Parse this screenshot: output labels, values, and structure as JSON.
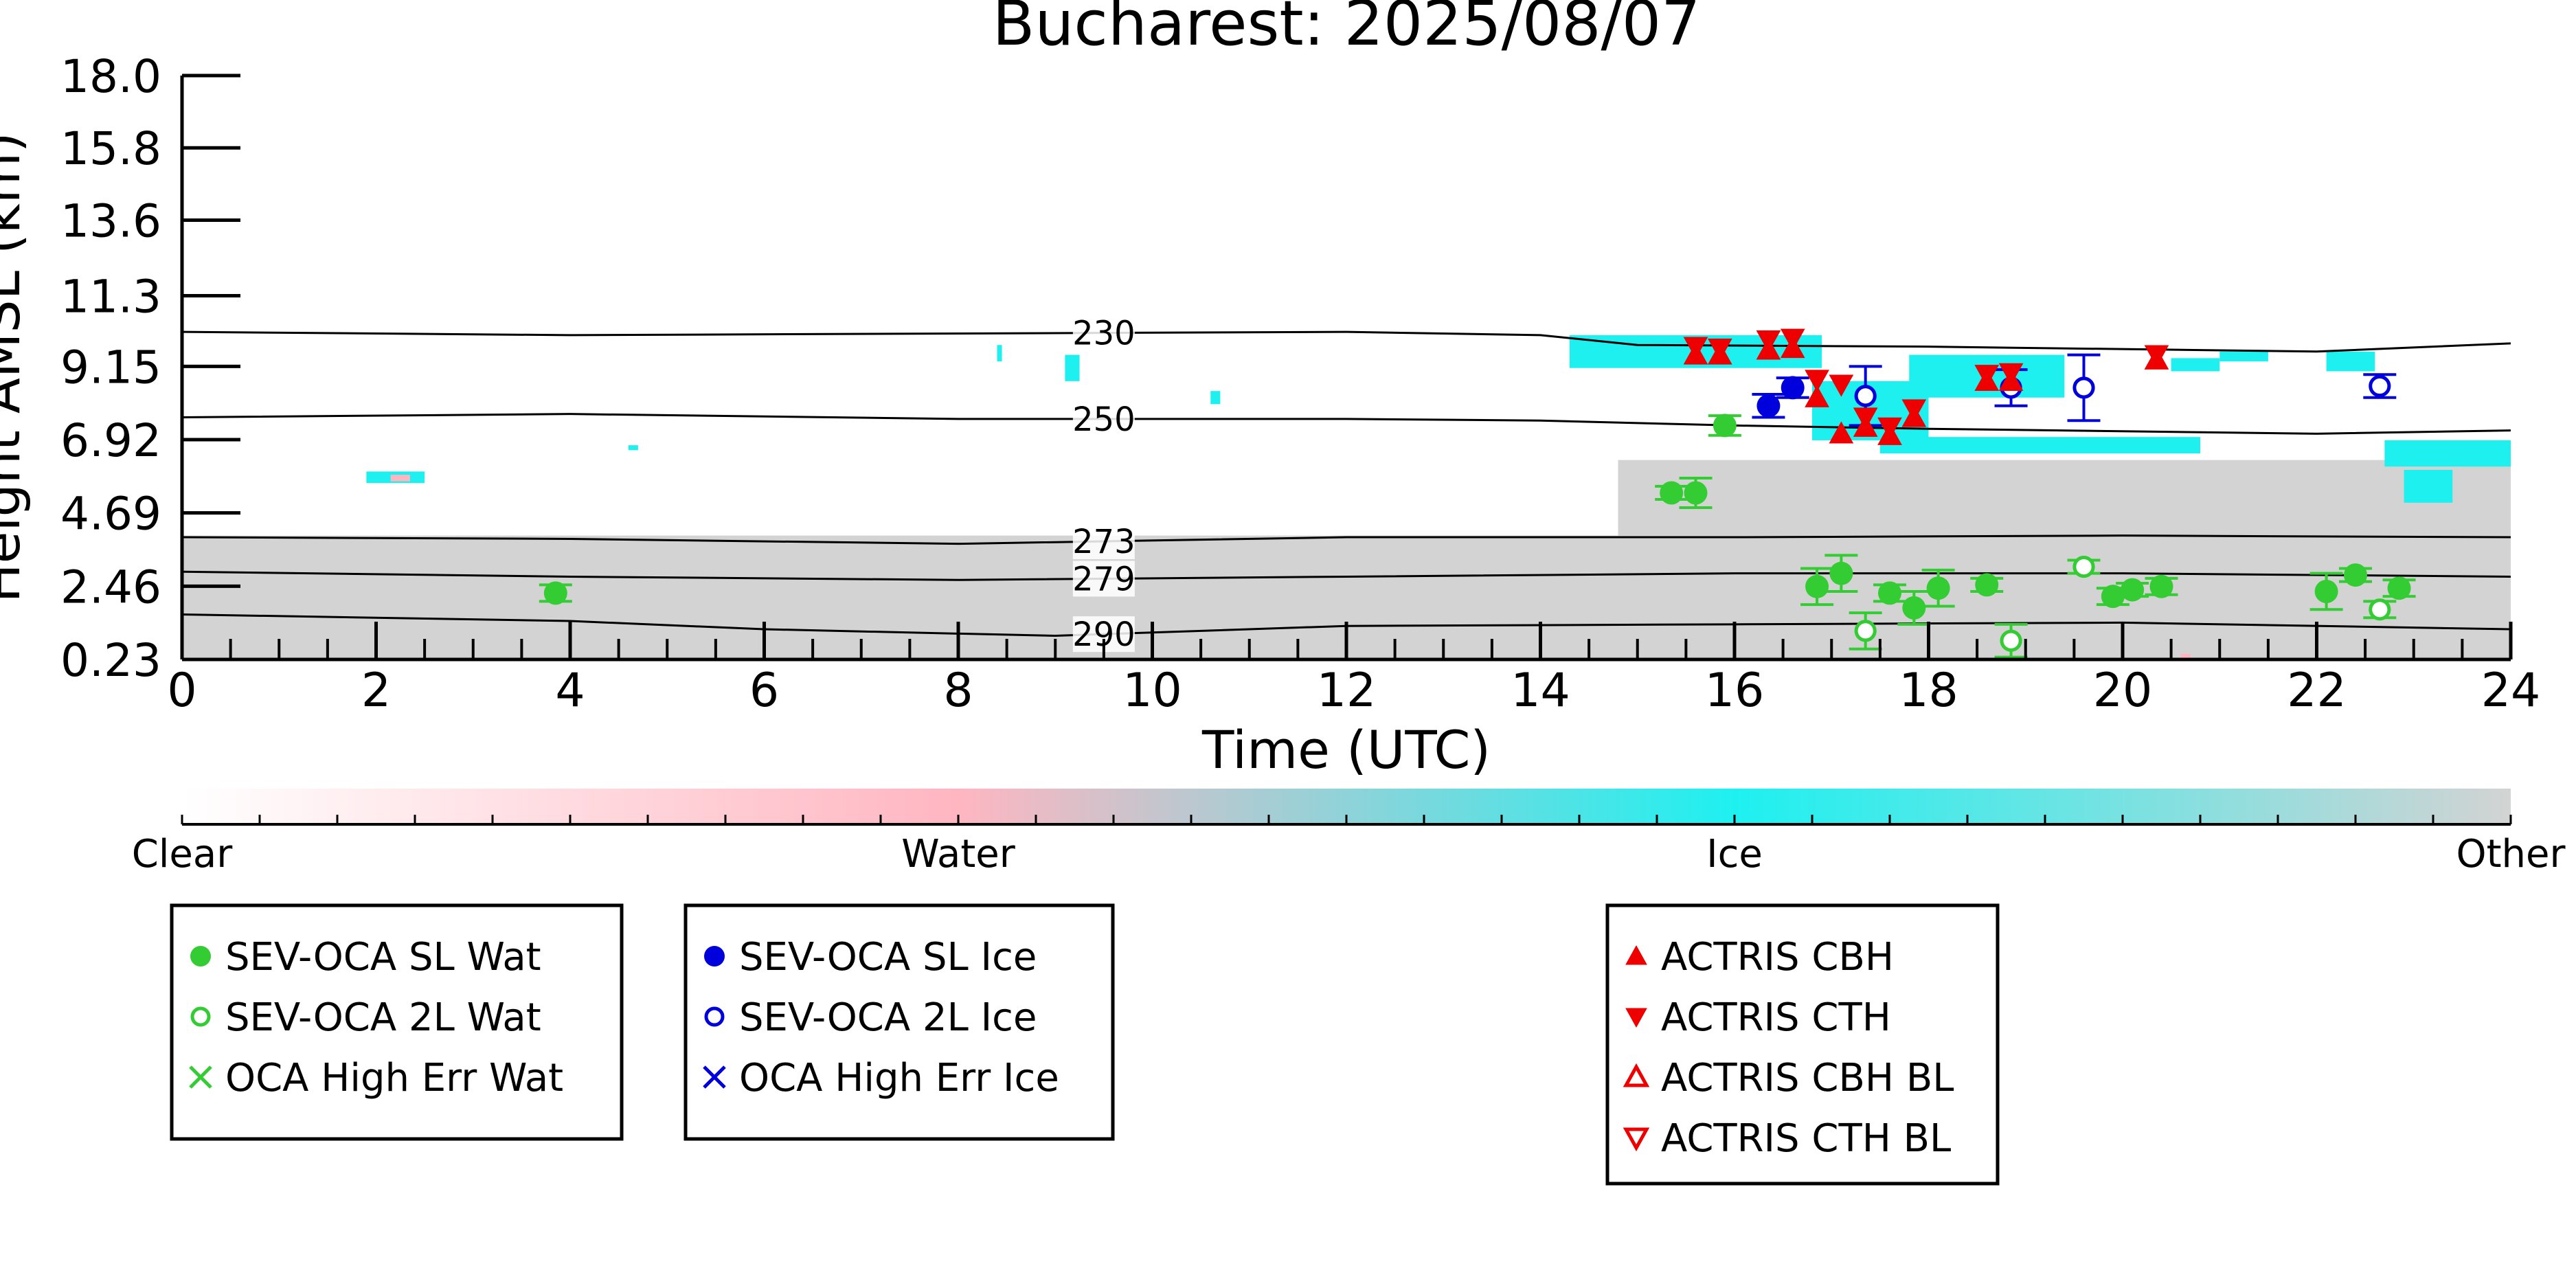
{
  "chart_data": {
    "type": "scatter",
    "title": "Bucharest: 2025/08/07",
    "xlabel": "Time (UTC)",
    "ylabel": "Height AMSL (km)",
    "xlim": [
      0,
      24
    ],
    "ylim": [
      0.23,
      18.0
    ],
    "x_ticks": [
      0,
      2,
      4,
      6,
      8,
      10,
      12,
      14,
      16,
      18,
      20,
      22,
      24
    ],
    "x_tick_labels": [
      "0",
      "2",
      "4",
      "6",
      "8",
      "10",
      "12",
      "14",
      "16",
      "18",
      "20",
      "22",
      "24"
    ],
    "y_ticks": [
      0.23,
      2.46,
      4.69,
      6.92,
      9.15,
      11.3,
      13.6,
      15.8,
      18.0
    ],
    "y_tick_labels": [
      "0.23",
      "2.46",
      "4.69",
      "6.92",
      "9.15",
      "11.3",
      "13.6",
      "15.8",
      "18.0"
    ],
    "grid": false,
    "colors": {
      "water_marker": "#33cc33",
      "ice_marker": "#0000dd",
      "actris_marker": "#ee0000",
      "ice_cloud": "#1ef0f0",
      "water_cloud": "#ffb6c1",
      "other_cloud": "#d3d3d3"
    },
    "isotherms": [
      {
        "label": "230",
        "points": [
          [
            0,
            10.2
          ],
          [
            4,
            10.1
          ],
          [
            8,
            10.15
          ],
          [
            12,
            10.2
          ],
          [
            14,
            10.1
          ],
          [
            15,
            9.8
          ],
          [
            18,
            9.75
          ],
          [
            22,
            9.6
          ],
          [
            24,
            9.85
          ]
        ]
      },
      {
        "label": "250",
        "points": [
          [
            0,
            7.6
          ],
          [
            4,
            7.7
          ],
          [
            8,
            7.55
          ],
          [
            12,
            7.55
          ],
          [
            14,
            7.5
          ],
          [
            16,
            7.35
          ],
          [
            18,
            7.25
          ],
          [
            22,
            7.1
          ],
          [
            24,
            7.2
          ]
        ]
      },
      {
        "label": "273",
        "points": [
          [
            0,
            3.95
          ],
          [
            4,
            3.9
          ],
          [
            8,
            3.75
          ],
          [
            12,
            3.95
          ],
          [
            16,
            3.95
          ],
          [
            20,
            4.0
          ],
          [
            24,
            3.95
          ]
        ]
      },
      {
        "label": "279",
        "points": [
          [
            0,
            2.9
          ],
          [
            4,
            2.75
          ],
          [
            8,
            2.65
          ],
          [
            12,
            2.75
          ],
          [
            16,
            2.85
          ],
          [
            20,
            2.85
          ],
          [
            24,
            2.75
          ]
        ]
      },
      {
        "label": "290",
        "points": [
          [
            0,
            1.6
          ],
          [
            4,
            1.4
          ],
          [
            6,
            1.15
          ],
          [
            9,
            0.95
          ],
          [
            12,
            1.25
          ],
          [
            16,
            1.3
          ],
          [
            20,
            1.35
          ],
          [
            24,
            1.15
          ]
        ]
      }
    ],
    "target_classification": {
      "colorbar": {
        "labels": [
          "Clear",
          "Water",
          "Ice",
          "Other"
        ],
        "colors": [
          "#ffffff",
          "#ffb6c1",
          "#1ef0f0",
          "#d3d3d3"
        ]
      },
      "other_regions": [
        {
          "x0": 0,
          "x1": 24,
          "y0": 0.23,
          "y1": 4.0
        },
        {
          "x0": 14.8,
          "x1": 24,
          "y0": 4.0,
          "y1": 6.3
        }
      ],
      "ice_patches": [
        {
          "x0": 1.9,
          "x1": 2.5,
          "y0": 5.6,
          "y1": 5.95
        },
        {
          "x0": 4.6,
          "x1": 4.7,
          "y0": 6.6,
          "y1": 6.75
        },
        {
          "x0": 9.1,
          "x1": 9.25,
          "y0": 8.7,
          "y1": 9.5
        },
        {
          "x0": 10.6,
          "x1": 10.7,
          "y0": 8.0,
          "y1": 8.4
        },
        {
          "x0": 8.4,
          "x1": 8.45,
          "y0": 9.3,
          "y1": 9.8
        },
        {
          "x0": 14.3,
          "x1": 16.9,
          "y0": 9.1,
          "y1": 10.1
        },
        {
          "x0": 16.8,
          "x1": 18.0,
          "y0": 6.9,
          "y1": 8.7
        },
        {
          "x0": 17.5,
          "x1": 20.8,
          "y0": 6.5,
          "y1": 7.0
        },
        {
          "x0": 17.8,
          "x1": 19.4,
          "y0": 8.2,
          "y1": 9.5
        },
        {
          "x0": 20.5,
          "x1": 21.0,
          "y0": 9.0,
          "y1": 9.4
        },
        {
          "x0": 21.0,
          "x1": 21.5,
          "y0": 9.3,
          "y1": 9.6
        },
        {
          "x0": 22.1,
          "x1": 22.6,
          "y0": 9.0,
          "y1": 9.6
        },
        {
          "x0": 22.7,
          "x1": 24.0,
          "y0": 6.1,
          "y1": 6.9
        },
        {
          "x0": 22.9,
          "x1": 23.4,
          "y0": 5.0,
          "y1": 6.0
        }
      ],
      "water_patches": [
        {
          "x0": 2.15,
          "x1": 2.35,
          "y0": 5.65,
          "y1": 5.85
        },
        {
          "x0": 20.6,
          "x1": 20.7,
          "y0": 0.23,
          "y1": 0.4
        }
      ]
    },
    "series": [
      {
        "name": "SEV-OCA SL Wat",
        "marker": "filled-circle",
        "color": "#33cc33",
        "points": [
          {
            "x": 3.85,
            "y": 2.25,
            "err": 0.25
          },
          {
            "x": 15.35,
            "y": 5.3,
            "err": 0.2
          },
          {
            "x": 15.6,
            "y": 5.3,
            "err": 0.45
          },
          {
            "x": 15.9,
            "y": 7.35,
            "err": 0.3
          },
          {
            "x": 16.85,
            "y": 2.45,
            "err": 0.55
          },
          {
            "x": 17.1,
            "y": 2.85,
            "err": 0.55
          },
          {
            "x": 17.6,
            "y": 2.25,
            "err": 0.25
          },
          {
            "x": 17.85,
            "y": 1.8,
            "err": 0.5
          },
          {
            "x": 18.1,
            "y": 2.4,
            "err": 0.55
          },
          {
            "x": 18.6,
            "y": 2.5,
            "err": 0.2
          },
          {
            "x": 19.9,
            "y": 2.15,
            "err": 0.25
          },
          {
            "x": 20.1,
            "y": 2.35,
            "err": 0.2
          },
          {
            "x": 20.4,
            "y": 2.45,
            "err": 0.25
          },
          {
            "x": 22.1,
            "y": 2.3,
            "err": 0.55
          },
          {
            "x": 22.4,
            "y": 2.8,
            "err": 0.2
          },
          {
            "x": 22.85,
            "y": 2.4,
            "err": 0.25
          }
        ]
      },
      {
        "name": "SEV-OCA 2L Wat",
        "marker": "open-circle",
        "color": "#33cc33",
        "points": [
          {
            "x": 17.35,
            "y": 1.1,
            "err": 0.55
          },
          {
            "x": 18.85,
            "y": 0.8,
            "err": 0.5
          },
          {
            "x": 19.6,
            "y": 3.05,
            "err": 0.2
          },
          {
            "x": 22.65,
            "y": 1.75,
            "err": 0.25
          }
        ]
      },
      {
        "name": "OCA High Err Wat",
        "marker": "cross",
        "color": "#33cc33",
        "points": []
      },
      {
        "name": "SEV-OCA SL Ice",
        "marker": "filled-circle",
        "color": "#0000dd",
        "points": [
          {
            "x": 16.35,
            "y": 7.95,
            "err": 0.35
          },
          {
            "x": 16.6,
            "y": 8.5,
            "err": 0.3
          }
        ]
      },
      {
        "name": "SEV-OCA 2L Ice",
        "marker": "open-circle",
        "color": "#0000dd",
        "points": [
          {
            "x": 17.35,
            "y": 8.25,
            "err": 0.9
          },
          {
            "x": 18.85,
            "y": 8.5,
            "err": 0.55
          },
          {
            "x": 19.6,
            "y": 8.5,
            "err": 1.0
          },
          {
            "x": 22.65,
            "y": 8.55,
            "err": 0.35
          }
        ]
      },
      {
        "name": "OCA High Err Ice",
        "marker": "cross",
        "color": "#0000dd",
        "points": []
      },
      {
        "name": "ACTRIS CBH",
        "marker": "triangle-up",
        "color": "#ee0000",
        "points": [
          {
            "x": 15.6,
            "y": 9.5
          },
          {
            "x": 15.85,
            "y": 9.5
          },
          {
            "x": 16.35,
            "y": 9.65
          },
          {
            "x": 16.6,
            "y": 9.7
          },
          {
            "x": 16.85,
            "y": 8.2
          },
          {
            "x": 17.1,
            "y": 7.1
          },
          {
            "x": 17.35,
            "y": 7.3
          },
          {
            "x": 17.6,
            "y": 7.05
          },
          {
            "x": 17.85,
            "y": 7.6
          },
          {
            "x": 18.6,
            "y": 8.7
          },
          {
            "x": 18.85,
            "y": 8.7
          },
          {
            "x": 20.35,
            "y": 9.35
          }
        ]
      },
      {
        "name": "ACTRIS CTH",
        "marker": "triangle-down",
        "color": "#ee0000",
        "points": [
          {
            "x": 15.6,
            "y": 9.75
          },
          {
            "x": 15.85,
            "y": 9.7
          },
          {
            "x": 16.35,
            "y": 9.95
          },
          {
            "x": 16.6,
            "y": 10.0
          },
          {
            "x": 16.85,
            "y": 8.75
          },
          {
            "x": 17.1,
            "y": 8.6
          },
          {
            "x": 17.35,
            "y": 7.6
          },
          {
            "x": 17.6,
            "y": 7.3
          },
          {
            "x": 17.85,
            "y": 7.85
          },
          {
            "x": 18.6,
            "y": 8.9
          },
          {
            "x": 18.85,
            "y": 8.95
          },
          {
            "x": 20.35,
            "y": 9.5
          }
        ]
      },
      {
        "name": "ACTRIS CBH BL",
        "marker": "open-triangle-up",
        "color": "#ee0000",
        "points": []
      },
      {
        "name": "ACTRIS CTH BL",
        "marker": "open-triangle-down",
        "color": "#ee0000",
        "points": []
      }
    ],
    "legends": [
      {
        "entries": [
          0,
          1,
          2
        ]
      },
      {
        "entries": [
          3,
          4,
          5
        ]
      },
      {
        "entries": [
          6,
          7,
          8,
          9
        ]
      }
    ]
  }
}
